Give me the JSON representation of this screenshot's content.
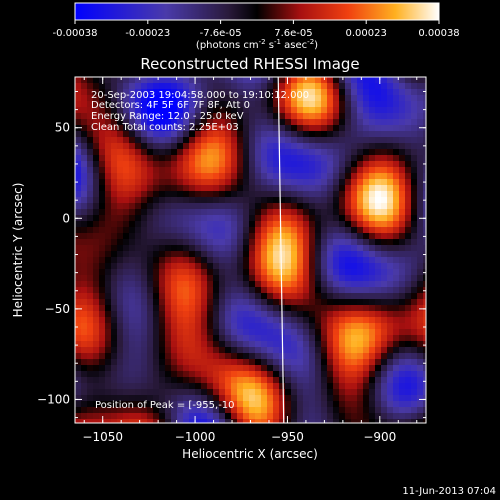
{
  "colorbar": {
    "tick_labels": [
      "-0.00038",
      "-0.00023",
      "-7.6e-05",
      "7.6e-05",
      "0.00023",
      "0.00038"
    ],
    "units_main": "(photons cm",
    "units_exp1": "-2",
    "units_mid": " s",
    "units_exp2": "-1",
    "units_end": " asec",
    "units_exp3": "-2",
    "units_close": ")"
  },
  "plot": {
    "title": "Reconstructed RHESSI Image",
    "info_lines": [
      "20-Sep-2003 19:04:58.000 to 19:10:12.000",
      "Detectors: 4F 5F 6F 7F 8F, Att 0",
      "Energy Range: 12.0 - 25.0 keV",
      "Clean    Total counts: 2.25E+03"
    ],
    "peak_label": "Position of Peak = [-955,-10"
  },
  "chart_data": {
    "type": "heatmap",
    "title": "Reconstructed RHESSI Image",
    "xlabel": "Heliocentric X (arcsec)",
    "ylabel": "Heliocentric Y (arcsec)",
    "xlim": [
      -1065,
      -875
    ],
    "ylim": [
      -113,
      78
    ],
    "xticks": [
      -1050,
      -1000,
      -950,
      -900
    ],
    "yticks": [
      -100,
      -50,
      0,
      50
    ],
    "colorbar_range": [
      -0.00038,
      0.00038
    ],
    "colormap": "blue-purple-black-red-yellow-white",
    "limb_line": [
      [
        -955,
        78
      ],
      [
        -952,
        -113
      ]
    ]
  },
  "footer": {
    "date": "11-Jun-2013 07:04"
  }
}
